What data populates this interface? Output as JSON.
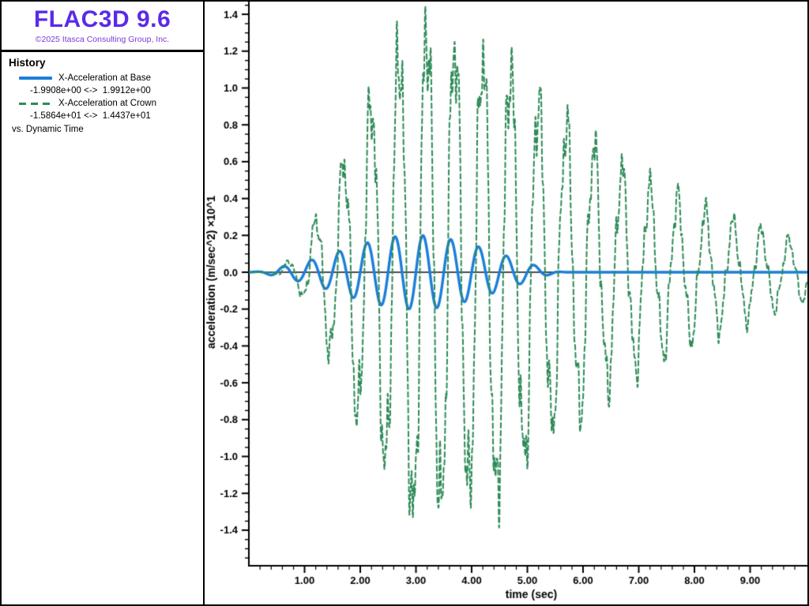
{
  "sidebar": {
    "app_title": "FLAC3D 9.6",
    "copyright": "©2025 Itasca Consulting Group, Inc.",
    "history_title": "History",
    "vs_label": "vs. Dynamic Time"
  },
  "colors": {
    "base_series": "#1b7fd8",
    "crown_series": "#2e8b57",
    "logo": "#5a2be6",
    "copyright_text": "#7b3bd9",
    "axis": "#000000"
  },
  "chart_data": {
    "type": "line",
    "xlabel": "time (sec)",
    "ylabel": "acceleration (m/sec^2) ×10^1",
    "xlim": [
      0,
      10.03
    ],
    "ylim": [
      -1.589,
      1.477
    ],
    "grid": false,
    "zero_line": true,
    "legend_position": "left-panel",
    "x_major_ticks": [
      1,
      2,
      3,
      4,
      5,
      6,
      7,
      8,
      9
    ],
    "x_minor_step": 0.2,
    "x_tick_decimals": 2,
    "y_major_min": -1.4,
    "y_major_max": 1.4,
    "y_major_step": 0.2,
    "y_minor_step": 0.05,
    "y_tick_decimals": 1,
    "series": [
      {
        "name": "X-Acceleration at Base",
        "range_label": "-1.9908e+00 <->  1.9912e+00",
        "color": "#1b7fd8",
        "line_style": "solid",
        "line_width": 3.4,
        "dash": [],
        "value_min": -1.9908,
        "value_max": 1.9912,
        "plot_min": -0.19908,
        "plot_max": 0.19912,
        "synthesis": {
          "carrier_hz": 2.0,
          "carrier_amp": 1.0,
          "phase": 0,
          "envelope": [
            [
              0,
              0
            ],
            [
              0.25,
              0.005
            ],
            [
              0.6,
              0.03
            ],
            [
              1.0,
              0.055
            ],
            [
              1.4,
              0.09
            ],
            [
              1.8,
              0.13
            ],
            [
              2.2,
              0.165
            ],
            [
              2.6,
              0.19
            ],
            [
              3.0,
              0.2
            ],
            [
              3.4,
              0.19
            ],
            [
              3.8,
              0.165
            ],
            [
              4.2,
              0.13
            ],
            [
              4.6,
              0.09
            ],
            [
              5.0,
              0.05
            ],
            [
              5.3,
              0.02
            ],
            [
              5.55,
              0.003
            ],
            [
              5.7,
              0
            ],
            [
              10.03,
              0
            ]
          ],
          "harmonics": []
        }
      },
      {
        "name": "X-Acceleration at Crown",
        "range_label": "-1.5864e+01 <->  1.4437e+01",
        "color": "#2e8b57",
        "line_style": "dashed",
        "line_width": 2,
        "dash": [
          6,
          4
        ],
        "value_min": -15.864,
        "value_max": 14.437,
        "plot_min": -1.5864,
        "plot_max": 1.4437,
        "synthesis": {
          "carrier_hz": 2.0,
          "carrier_amp": 0.88,
          "phase": -0.9,
          "envelope": [
            [
              0,
              0
            ],
            [
              0.45,
              0
            ],
            [
              0.6,
              0.04
            ],
            [
              0.9,
              0.1
            ],
            [
              1.2,
              0.3
            ],
            [
              1.5,
              0.48
            ],
            [
              1.8,
              0.72
            ],
            [
              2.1,
              0.95
            ],
            [
              2.4,
              1.1
            ],
            [
              2.7,
              1.3
            ],
            [
              3.0,
              1.48
            ],
            [
              3.3,
              1.42
            ],
            [
              3.6,
              1.38
            ],
            [
              3.9,
              1.3
            ],
            [
              4.2,
              1.28
            ],
            [
              4.5,
              1.32
            ],
            [
              4.8,
              1.15
            ],
            [
              5.1,
              1.05
            ],
            [
              5.4,
              0.9
            ],
            [
              5.7,
              0.85
            ],
            [
              6.0,
              0.8
            ],
            [
              6.3,
              0.68
            ],
            [
              6.6,
              0.6
            ],
            [
              6.9,
              0.55
            ],
            [
              7.2,
              0.48
            ],
            [
              7.5,
              0.45
            ],
            [
              7.8,
              0.4
            ],
            [
              8.1,
              0.35
            ],
            [
              8.4,
              0.32
            ],
            [
              8.7,
              0.28
            ],
            [
              9.0,
              0.26
            ],
            [
              9.3,
              0.22
            ],
            [
              9.6,
              0.19
            ],
            [
              9.9,
              0.16
            ],
            [
              10.03,
              0.15
            ]
          ],
          "harmonics": [
            {
              "hz": 6.1,
              "amp": 0.14,
              "phase": 1.3
            },
            {
              "hz": 11.7,
              "amp": 0.08,
              "phase": 0.7
            },
            {
              "hz": 19.3,
              "amp": 0.045,
              "phase": 0.2
            },
            {
              "hz": 29.7,
              "amp": 0.03,
              "phase": 2.0
            }
          ]
        }
      }
    ]
  }
}
